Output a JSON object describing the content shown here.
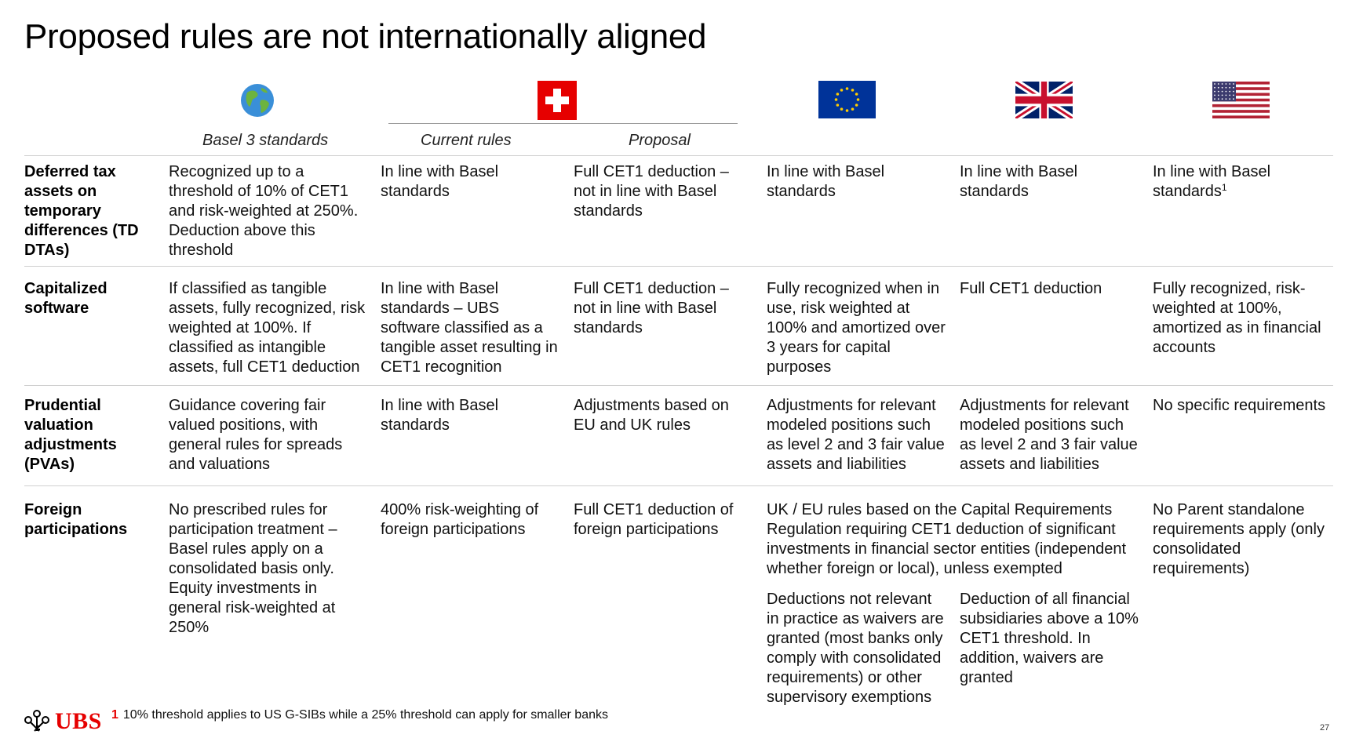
{
  "title": "Proposed rules are not internationally aligned",
  "columns": {
    "basel": "Basel 3 standards",
    "current": "Current rules",
    "proposal": "Proposal"
  },
  "flags": [
    "globe-icon",
    "swiss-flag-icon",
    "eu-flag-icon",
    "uk-flag-icon",
    "us-flag-icon"
  ],
  "colors": {
    "accent": "#e60000",
    "eu_blue": "#003399",
    "eu_star": "#ffcc00",
    "uk_blue": "#012169",
    "us_red": "#b22234",
    "us_blue": "#3c3b6e"
  },
  "rows": [
    {
      "head": "Deferred tax assets on temporary differences (TD DTAs)",
      "basel": "Recognized up to a threshold of 10% of CET1 and risk-weighted at 250%. Deduction above this threshold",
      "current": "In line with Basel standards",
      "proposal": "Full CET1 deduction – not in line with Basel standards",
      "eu": "In line with Basel standards",
      "uk": "In line with Basel standards",
      "us": "In line with Basel standards",
      "us_sup": "1"
    },
    {
      "head": "Capitalized software",
      "basel": "If classified as tangible assets, fully recognized, risk weighted at 100%. If classified as intangible assets, full CET1 deduction",
      "current": "In line with Basel standards – UBS software classified as a tangible asset resulting in CET1 recognition",
      "proposal": "Full CET1 deduction – not in line with Basel standards",
      "eu": "Fully recognized when in use, risk weighted at 100% and amortized over 3 years for capital purposes",
      "uk": "Full CET1 deduction",
      "us": "Fully recognized, risk-weighted at 100%, amortized as in financial accounts"
    },
    {
      "head": "Prudential valuation adjustments (PVAs)",
      "basel": "Guidance covering fair valued positions, with general rules for spreads and valuations",
      "current": "In line with Basel standards",
      "proposal": "Adjustments based on EU and UK rules",
      "eu": "Adjustments for relevant modeled positions such as level 2 and 3 fair value assets and liabilities",
      "uk": "Adjustments for relevant modeled positions such as level 2 and 3 fair value assets and liabilities",
      "us": "No specific requirements"
    },
    {
      "head": "Foreign participations",
      "basel": "No prescribed rules for participation treatment – Basel rules apply on a consolidated basis only. Equity investments in general risk-weighted at 250%",
      "current": "400% risk-weighting of foreign participations",
      "proposal": "Full CET1 deduction of foreign participations",
      "eu_uk": "UK / EU rules based on the Capital Requirements Regulation requiring CET1 deduction of significant investments in financial sector entities (independent whether foreign or local), unless exempted",
      "eu": "Deductions not relevant in practice as waivers are granted (most banks only comply with consolidated requirements) or other supervisory exemptions",
      "uk": "Deduction of all financial subsidiaries above a 10% CET1 threshold. In addition, waivers are granted",
      "us": "No Parent standalone requirements apply (only consolidated requirements)"
    }
  ],
  "footnote": {
    "num": "1",
    "text": "10% threshold applies to US G-SIBs while a 25% threshold can apply for smaller banks"
  },
  "logo": "UBS",
  "page_number": "27"
}
